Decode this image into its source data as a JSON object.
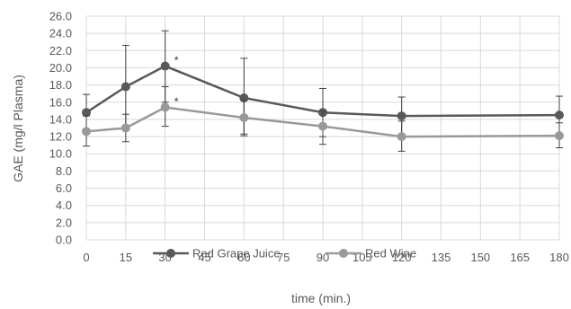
{
  "chart_data": {
    "type": "line",
    "title": "",
    "xlabel": "time (min.)",
    "ylabel": "GAE (mg/l Plasma)",
    "xlim": [
      0,
      180
    ],
    "ylim": [
      0,
      26
    ],
    "x_ticks": [
      "0",
      "15",
      "30",
      "45",
      "60",
      "75",
      "90",
      "105",
      "120",
      "135",
      "150",
      "165",
      "180"
    ],
    "y_ticks": [
      "0.0",
      "2.0",
      "4.0",
      "6.0",
      "8.0",
      "10.0",
      "12.0",
      "14.0",
      "16.0",
      "18.0",
      "20.0",
      "22.0",
      "24.0",
      "26.0"
    ],
    "grid": true,
    "legend_position": "bottom",
    "series": [
      {
        "name": "Red Grape Juice",
        "color": "#595959",
        "x": [
          0,
          15,
          30,
          60,
          90,
          120,
          180
        ],
        "y": [
          14.8,
          17.8,
          20.2,
          16.5,
          14.8,
          14.4,
          14.5
        ],
        "err_low": [
          12.7,
          13.3,
          16.0,
          12.1,
          12.0,
          12.1,
          12.3
        ],
        "err_high": [
          16.9,
          22.6,
          24.3,
          21.1,
          17.6,
          16.6,
          16.7
        ]
      },
      {
        "name": "Red Wine",
        "color": "#999999",
        "x": [
          0,
          15,
          30,
          60,
          90,
          120,
          180
        ],
        "y": [
          12.6,
          13.0,
          15.4,
          14.2,
          13.2,
          12.0,
          12.1
        ],
        "err_low": [
          10.9,
          11.4,
          13.2,
          12.3,
          11.1,
          10.3,
          10.7
        ],
        "err_high": [
          14.4,
          14.6,
          17.8,
          16.2,
          15.0,
          13.8,
          13.6
        ]
      }
    ],
    "annotations": [
      {
        "text": "*",
        "series": 0,
        "x": 30
      },
      {
        "text": "*",
        "series": 1,
        "x": 30
      }
    ]
  }
}
